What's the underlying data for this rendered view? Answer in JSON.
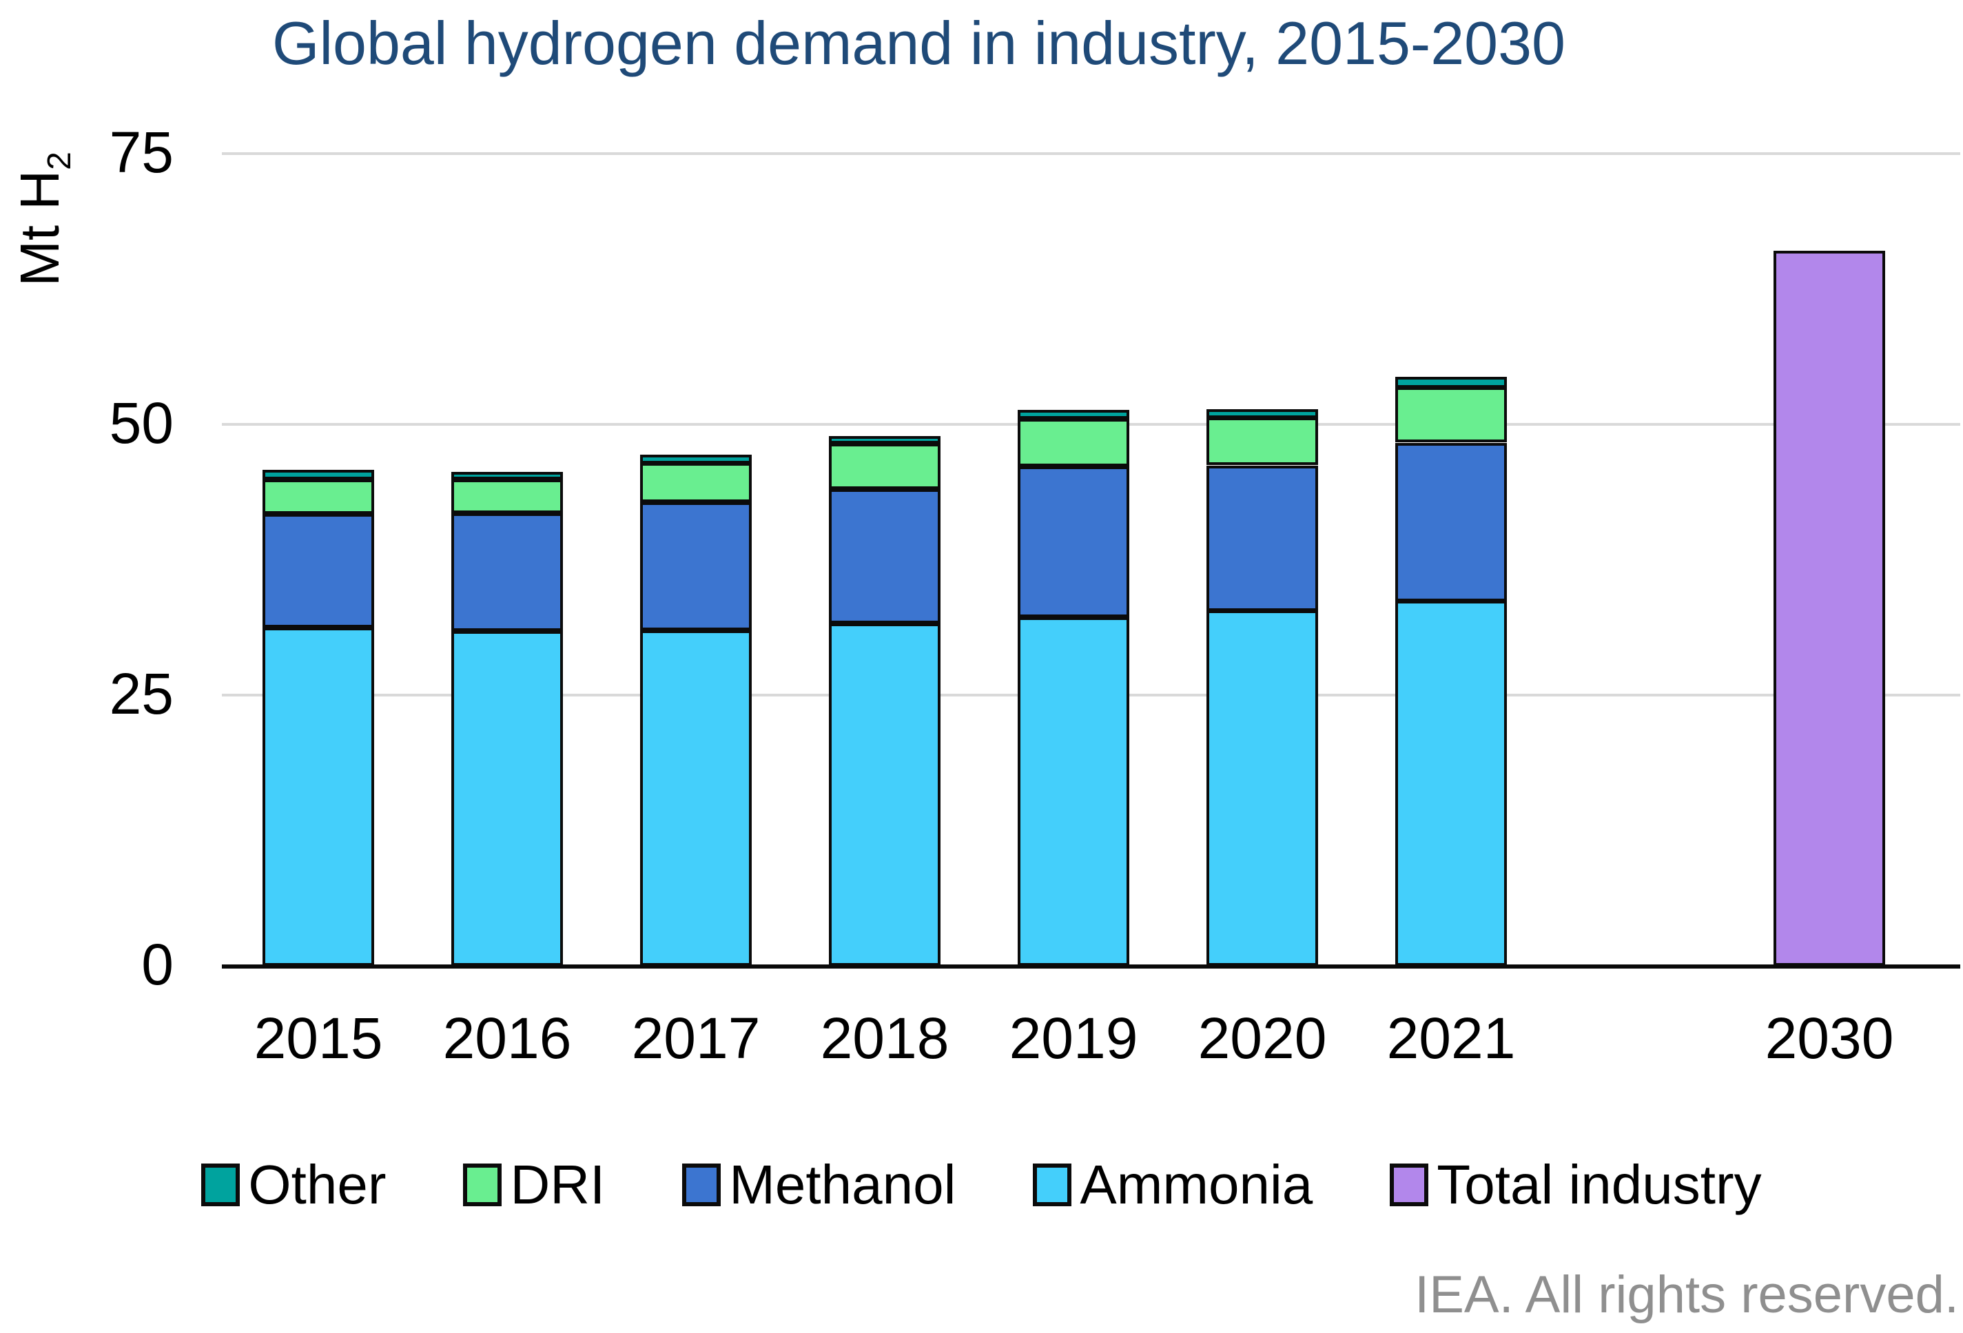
{
  "title": "Global hydrogen demand in industry, 2015-2030",
  "y_axis": {
    "label": "Mt H₂",
    "ticks": [
      "0",
      "25",
      "50",
      "75"
    ]
  },
  "footer": "IEA. All rights reserved.",
  "legend": {
    "items": [
      {
        "label": "Other",
        "color": "#00A39E"
      },
      {
        "label": "DRI",
        "color": "#69EE90"
      },
      {
        "label": "Methanol",
        "color": "#3C75D0"
      },
      {
        "label": "Ammonia",
        "color": "#44CFFB"
      },
      {
        "label": "Total industry",
        "color": "#B287EB"
      }
    ]
  },
  "colors": {
    "title": "#1F4A78",
    "gridline": "#D9D9D9",
    "axis": "#000000",
    "bar_border": "#0B0B0B",
    "footer_text": "#8F8F8F"
  },
  "chart_data": {
    "type": "bar",
    "subtype": "stacked-vertical",
    "title": "Global hydrogen demand in industry, 2015-2030",
    "ylabel": "Mt H2",
    "xlabel": "",
    "ylim": [
      0,
      75
    ],
    "yticks": [
      0,
      25,
      50,
      75
    ],
    "grid": "horizontal",
    "legend_position": "bottom",
    "categories": [
      "2015",
      "2016",
      "2017",
      "2018",
      "2019",
      "2020",
      "2021",
      "2030"
    ],
    "stack_order_bottom_to_top": [
      "Ammonia",
      "Methanol",
      "DRI",
      "Other"
    ],
    "series": [
      {
        "name": "Other",
        "color": "#00A39E",
        "values": [
          0.9,
          0.7,
          0.8,
          0.7,
          0.8,
          0.8,
          1.0
        ]
      },
      {
        "name": "DRI",
        "color": "#69EE90",
        "values": [
          3.2,
          3.1,
          3.6,
          4.2,
          4.4,
          4.4,
          5.1
        ]
      },
      {
        "name": "Methanol",
        "color": "#3C75D0",
        "values": [
          10.5,
          10.9,
          11.8,
          12.4,
          13.9,
          13.4,
          14.6
        ]
      },
      {
        "name": "Ammonia",
        "color": "#44CFFB",
        "values": [
          31.2,
          30.9,
          31.0,
          31.6,
          32.2,
          32.8,
          33.7
        ]
      }
    ],
    "totals_2015_2021": [
      45.8,
      45.6,
      47.2,
      48.9,
      51.3,
      51.4,
      54.4
    ],
    "projection": {
      "name": "Total industry",
      "category": "2030",
      "value": 66,
      "color": "#B287EB"
    }
  }
}
